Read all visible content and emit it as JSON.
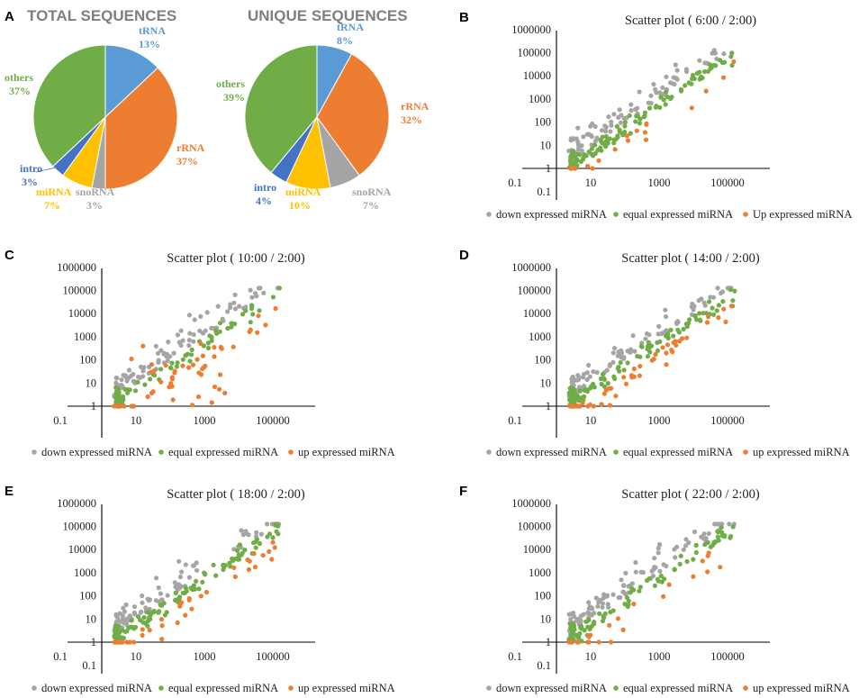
{
  "colors": {
    "tRNA": "#5b9bd5",
    "rRNA": "#ed7d31",
    "snoRNA": "#a5a5a5",
    "miRNA": "#ffc000",
    "intro": "#4472c4",
    "others": "#70ad47",
    "down": "#a5a5a5",
    "equal": "#70ad47",
    "up": "#ed7d31"
  },
  "chart_data": [
    {
      "panel": "A",
      "type": "pie",
      "title": "TOTAL SEQUENCES",
      "slices": [
        {
          "name": "tRNA",
          "value": 13,
          "label": "13%",
          "color_key": "tRNA"
        },
        {
          "name": "rRNA",
          "value": 37,
          "label": "37%",
          "color_key": "rRNA"
        },
        {
          "name": "snoRNA",
          "value": 3,
          "label": "3%",
          "color_key": "snoRNA"
        },
        {
          "name": "miRNA",
          "value": 7,
          "label": "7%",
          "color_key": "miRNA"
        },
        {
          "name": "intro",
          "value": 3,
          "label": "3%",
          "color_key": "intro"
        },
        {
          "name": "others",
          "value": 37,
          "label": "37%",
          "color_key": "others"
        }
      ]
    },
    {
      "panel": "",
      "type": "pie",
      "title": "UNIQUE SEQUENCES",
      "slices": [
        {
          "name": "tRNA",
          "value": 8,
          "label": "8%",
          "color_key": "tRNA"
        },
        {
          "name": "rRNA",
          "value": 32,
          "label": "32%",
          "color_key": "rRNA"
        },
        {
          "name": "snoRNA",
          "value": 7,
          "label": "7%",
          "color_key": "snoRNA"
        },
        {
          "name": "miRNA",
          "value": 10,
          "label": "10%",
          "color_key": "miRNA"
        },
        {
          "name": "intro",
          "value": 4,
          "label": "4%",
          "color_key": "intro"
        },
        {
          "name": "others",
          "value": 39,
          "label": "39%",
          "color_key": "others"
        }
      ]
    },
    {
      "panel": "B",
      "type": "scatter",
      "title": "Scatter plot ( 6:00 / 2:00)",
      "xscale": "log",
      "yscale": "log",
      "xlim": [
        0.1,
        1000000
      ],
      "ylim": [
        0.1,
        1000000
      ],
      "xticks": [
        "0.1",
        "10",
        "1000",
        "100000"
      ],
      "yticks": [
        "0.1",
        "1",
        "10",
        "100",
        "1000",
        "10000",
        "100000",
        "1000000"
      ],
      "legend": [
        "down expressed miRNA",
        "equal expressed miRNA",
        "Up expressed miRNA"
      ],
      "seed": 11,
      "n": [
        90,
        110,
        22
      ],
      "updist": "below"
    },
    {
      "panel": "C",
      "type": "scatter",
      "title": "Scatter plot ( 10:00 / 2:00)",
      "xscale": "log",
      "yscale": "log",
      "xlim": [
        0.1,
        1000000
      ],
      "ylim": [
        0.1,
        1000000
      ],
      "xticks": [
        "0.1",
        "10",
        "1000",
        "100000"
      ],
      "yticks": [
        "1",
        "10",
        "100",
        "1000",
        "10000",
        "100000",
        "1000000"
      ],
      "legend": [
        "down expressed miRNA",
        "equal expressed miRNA",
        "up expressed miRNA"
      ],
      "seed": 23,
      "n": [
        110,
        75,
        60
      ],
      "updist": "wide"
    },
    {
      "panel": "D",
      "type": "scatter",
      "title": "Scatter plot ( 14:00 / 2:00)",
      "xscale": "log",
      "yscale": "log",
      "xlim": [
        0.1,
        1000000
      ],
      "ylim": [
        0.1,
        1000000
      ],
      "xticks": [
        "0.1",
        "10",
        "1000",
        "100000"
      ],
      "yticks": [
        "1",
        "10",
        "100",
        "1000",
        "10000",
        "100000",
        "1000000"
      ],
      "legend": [
        "down expressed miRNA",
        "equal expressed miRNA",
        "up expressed miRNA"
      ],
      "seed": 37,
      "n": [
        95,
        110,
        55
      ],
      "updist": "below"
    },
    {
      "panel": "E",
      "type": "scatter",
      "title": "Scatter plot ( 18:00 / 2:00)",
      "xscale": "log",
      "yscale": "log",
      "xlim": [
        0.1,
        1000000
      ],
      "ylim": [
        0.1,
        1000000
      ],
      "xticks": [
        "0.1",
        "10",
        "1000",
        "100000"
      ],
      "yticks": [
        "0.1",
        "1",
        "10",
        "100",
        "1000",
        "10000",
        "100000",
        "1000000"
      ],
      "legend": [
        "down expressed miRNA",
        "equal expressed miRNA",
        "up expressed miRNA"
      ],
      "seed": 51,
      "n": [
        100,
        110,
        50
      ],
      "updist": "below"
    },
    {
      "panel": "F",
      "type": "scatter",
      "title": "Scatter plot ( 22:00 / 2:00)",
      "xscale": "log",
      "yscale": "log",
      "xlim": [
        0.1,
        1000000
      ],
      "ylim": [
        0.1,
        1000000
      ],
      "xticks": [
        "0.1",
        "10",
        "1000",
        "100000"
      ],
      "yticks": [
        "0.1",
        "1",
        "10",
        "100",
        "1000",
        "10000",
        "100000",
        "1000000"
      ],
      "legend": [
        "down expressed miRNA",
        "equal expressed miRNA",
        "up expressed miRNA"
      ],
      "seed": 67,
      "n": [
        120,
        95,
        25
      ],
      "updist": "below"
    }
  ]
}
